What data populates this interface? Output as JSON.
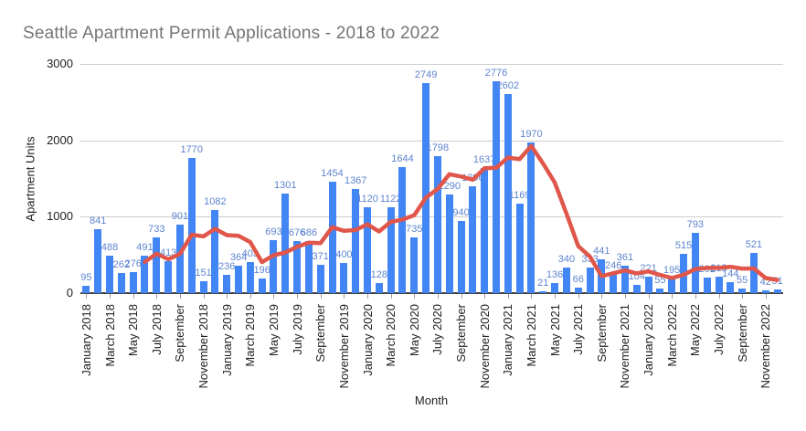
{
  "title": "Seattle Apartment Permit Applications - 2018 to 2022",
  "colors": {
    "bar": "#4285f4",
    "trend_line": "#e0564a",
    "data_label": "#5e84cf",
    "title_text": "#757575",
    "gridline": "#cccccc",
    "axis_text": "#202124"
  },
  "chart_data": {
    "type": "bar",
    "title": "Seattle Apartment Permit Applications - 2018 to 2022",
    "xlabel": "Month",
    "ylabel": "Apartment Units",
    "ylim": [
      0,
      3000
    ],
    "yticks": [
      0,
      1000,
      2000,
      3000
    ],
    "grid": true,
    "legend": "none",
    "x_tick_labels": [
      "January 2018",
      "March 2018",
      "May 2018",
      "July 2018",
      "September",
      "November 2018",
      "January 2019",
      "March 2019",
      "May 2019",
      "July 2019",
      "September",
      "November 2019",
      "January 2020",
      "March 2020",
      "May 2020",
      "July 2020",
      "September",
      "November 2020",
      "January 2021",
      "March 2021",
      "May 2021",
      "July 2021",
      "September",
      "November 2021",
      "January 2022",
      "March 2022",
      "May 2022",
      "July 2022",
      "September",
      "November 2022"
    ],
    "categories": [
      "January 2018",
      "February 2018",
      "March 2018",
      "April 2018",
      "May 2018",
      "June 2018",
      "July 2018",
      "August 2018",
      "September 2018",
      "October 2018",
      "November 2018",
      "December 2018",
      "January 2019",
      "February 2019",
      "March 2019",
      "April 2019",
      "May 2019",
      "June 2019",
      "July 2019",
      "August 2019",
      "September 2019",
      "October 2019",
      "November 2019",
      "December 2019",
      "January 2020",
      "February 2020",
      "March 2020",
      "April 2020",
      "May 2020",
      "June 2020",
      "July 2020",
      "August 2020",
      "September 2020",
      "October 2020",
      "November 2020",
      "December 2020",
      "January 2021",
      "February 2021",
      "March 2021",
      "April 2021",
      "May 2021",
      "June 2021",
      "July 2021",
      "August 2021",
      "September 2021",
      "October 2021",
      "November 2021",
      "December 2021",
      "January 2022",
      "February 2022",
      "March 2022",
      "April 2022",
      "May 2022",
      "June 2022",
      "July 2022",
      "August 2022",
      "September 2022",
      "October 2022",
      "November 2022",
      "December 2022"
    ],
    "series": [
      {
        "name": "Apartment Units",
        "type": "bar",
        "values": [
          95,
          841,
          488,
          262,
          276,
          491,
          733,
          413,
          901,
          1770,
          151,
          1082,
          236,
          364,
          403,
          196,
          693,
          1301,
          676,
          686,
          371,
          1454,
          400,
          1367,
          1120,
          128,
          1122,
          1644,
          735,
          2749,
          1798,
          1290,
          940,
          1396,
          1637,
          2776,
          2602,
          1169,
          1970,
          21,
          136,
          340,
          66,
          333,
          441,
          246,
          361,
          104,
          221,
          55,
          195,
          515,
          793,
          202,
          218,
          144,
          55,
          521,
          42,
          51
        ]
      },
      {
        "name": "6-month moving average",
        "type": "line",
        "values": [
          null,
          null,
          null,
          null,
          null,
          408.8,
          515.2,
          443.8,
          512.7,
          764.0,
          743.2,
          841.7,
          758.8,
          750.7,
          667.7,
          405.3,
          495.7,
          532.2,
          605.5,
          659.2,
          653.8,
          863.5,
          814.7,
          825.7,
          899.7,
          806.7,
          931.8,
          963.5,
          1019.3,
          1249.7,
          1362.7,
          1556.3,
          1526.0,
          1484.7,
          1635.0,
          1639.5,
          1773.5,
          1753.3,
          1925.0,
          1695.8,
          1445.7,
          1039.7,
          617.0,
          477.7,
          222.8,
          260.3,
          297.8,
          258.5,
          284.3,
          238.0,
          197.0,
          241.8,
          313.8,
          330.2,
          329.7,
          344.5,
          321.2,
          322.2,
          197.0,
          171.8
        ]
      }
    ]
  }
}
